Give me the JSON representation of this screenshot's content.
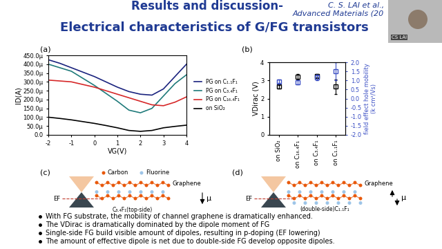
{
  "header": {
    "title_top": "Results and discussion-",
    "title": "Electrical characteristics of G/FG transistors",
    "citation": [
      "C. S. LAI et al.,",
      "Advanced Materials (20"
    ],
    "speaker": "CS LAI"
  },
  "chart_data": [
    {
      "type": "line",
      "label": "(a)",
      "xlabel": "VG(V)",
      "ylabel": "ID(A)",
      "x": [
        -2,
        -1.5,
        -1,
        -0.5,
        0,
        0.5,
        1,
        1.5,
        2,
        2.5,
        3,
        3.5,
        4
      ],
      "xlim": [
        -2,
        4
      ],
      "xticks": [
        -2,
        -1,
        0,
        1,
        2,
        3,
        4
      ],
      "ylim": [
        0,
        0.00045
      ],
      "yticks": [
        {
          "value": 0,
          "label": "0.0"
        },
        {
          "value": 5e-05,
          "label": "50.0μ"
        },
        {
          "value": 0.0001,
          "label": "100.0μ"
        },
        {
          "value": 0.00015,
          "label": "150.0μ"
        },
        {
          "value": 0.0002,
          "label": "200.0μ"
        },
        {
          "value": 0.00025,
          "label": "250.0μ"
        },
        {
          "value": 0.0003,
          "label": "300.0μ"
        },
        {
          "value": 0.00035,
          "label": "350.0μ"
        },
        {
          "value": 0.0004,
          "label": "400.0μ"
        },
        {
          "value": 0.00045,
          "label": "450.0μ"
        }
      ],
      "legend": "right",
      "series": [
        {
          "name": "PG on C₁.₁F₁",
          "color": "#1a237e",
          "values": [
            0.000425,
            0.000405,
            0.00038,
            0.000355,
            0.00033,
            0.0003,
            0.00027,
            0.000245,
            0.00023,
            0.000225,
            0.00026,
            0.00033,
            0.0004
          ]
        },
        {
          "name": "PG on C₃.₄F₁",
          "color": "#1f7a7a",
          "values": [
            0.0004,
            0.00038,
            0.00036,
            0.00032,
            0.00028,
            0.000235,
            0.00019,
            0.00014,
            0.000125,
            0.00015,
            0.00022,
            0.00029,
            0.00034
          ]
        },
        {
          "name": "PG on C₁₆.₄F₁",
          "color": "#d62728",
          "values": [
            0.00031,
            0.000305,
            0.0003,
            0.000285,
            0.00027,
            0.00025,
            0.00023,
            0.00021,
            0.00019,
            0.00017,
            0.000165,
            0.000185,
            0.000215
          ]
        },
        {
          "name": "on SiO₂",
          "color": "#000000",
          "values": [
            0.0001,
            9.3e-05,
            8.5e-05,
            7.5e-05,
            6.5e-05,
            5.3e-05,
            4e-05,
            2.5e-05,
            2e-05,
            2.5e-05,
            4e-05,
            4.8e-05,
            5.5e-05
          ]
        }
      ]
    },
    {
      "type": "scatter",
      "label": "(b)",
      "categories": [
        "on SiO₂",
        "on C₁₆.₄F₁",
        "on C₃.₄F₁",
        "on C₁.₁F₁"
      ],
      "ylabel": "VDirac (V)",
      "y2label": "field effect hole mobility\n(k cm²/Vs)",
      "ylim": [
        0,
        4
      ],
      "yticks": [
        0,
        1,
        2,
        3,
        4
      ],
      "y2lim": [
        -2.0,
        2.0
      ],
      "y2ticks": [
        -2.0,
        -1.5,
        -1.0,
        -0.5,
        0.0,
        0.5,
        1.0,
        1.5,
        2.0
      ],
      "series": [
        {
          "color": "#000000",
          "marker": "square",
          "line_style": "none",
          "values": [
            2.65,
            3.2,
            3.25,
            2.65
          ],
          "errors": [
            0.1,
            0.15,
            0.1,
            0.4
          ]
        },
        {
          "color": "#3b4fc4",
          "marker": "square",
          "line_style": "none",
          "axis": "y2",
          "values": [
            0.95,
            0.9,
            1.15,
            1.5
          ],
          "errors": [
            0.1,
            0.1,
            0.15,
            0.5
          ]
        }
      ]
    }
  ],
  "diagrams": [
    {
      "label": "(c)",
      "atoms": [
        "Carbon",
        "Fluorine"
      ],
      "fermi": "EF",
      "layer": "Graphene",
      "substrate": "C₃.₄F₁(top-side)",
      "dipole": "μ"
    },
    {
      "label": "(d)",
      "fermi": "EF",
      "layer": "Graphene",
      "substrate": "(double-side)C₁.₁F₁",
      "dipole": "μ"
    }
  ],
  "bullets": [
    "With FG substrate, the mobility of channel graphene is dramatically enhanced.",
    "The VDirac is dramatically dominated by the dipole moment of FG",
    "Single-side FG build visible amount of dipoles, resulting in p-doping (EF lowering)",
    "The amount of effective dipole is net due to double-side FG develop opposite dipoles."
  ]
}
